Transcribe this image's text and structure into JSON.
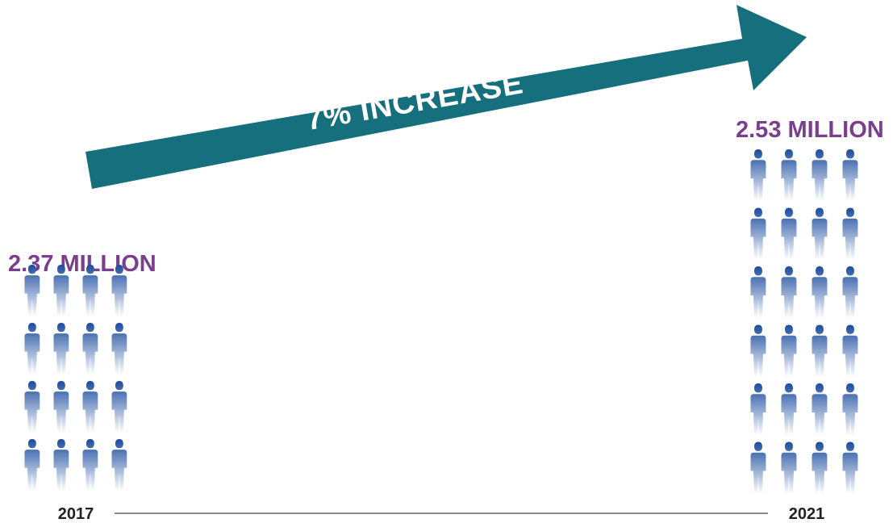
{
  "colors": {
    "arrow": "#156F7C",
    "value_text": "#7B3E8E",
    "figure_top": "#1C4C9E",
    "figure_bottom": "#FFFFFF",
    "timeline": "#444444"
  },
  "icon": "person-silhouette-icon",
  "chart_data": {
    "type": "pictogram",
    "categories": [
      "2017",
      "2021"
    ],
    "values": [
      2.37,
      2.53
    ],
    "value_labels": [
      "2.37 MILLION",
      "2.53 MILLION"
    ],
    "annotation": "7% INCREASE",
    "figure_rows": [
      4,
      6
    ],
    "figures_per_row": 4
  }
}
